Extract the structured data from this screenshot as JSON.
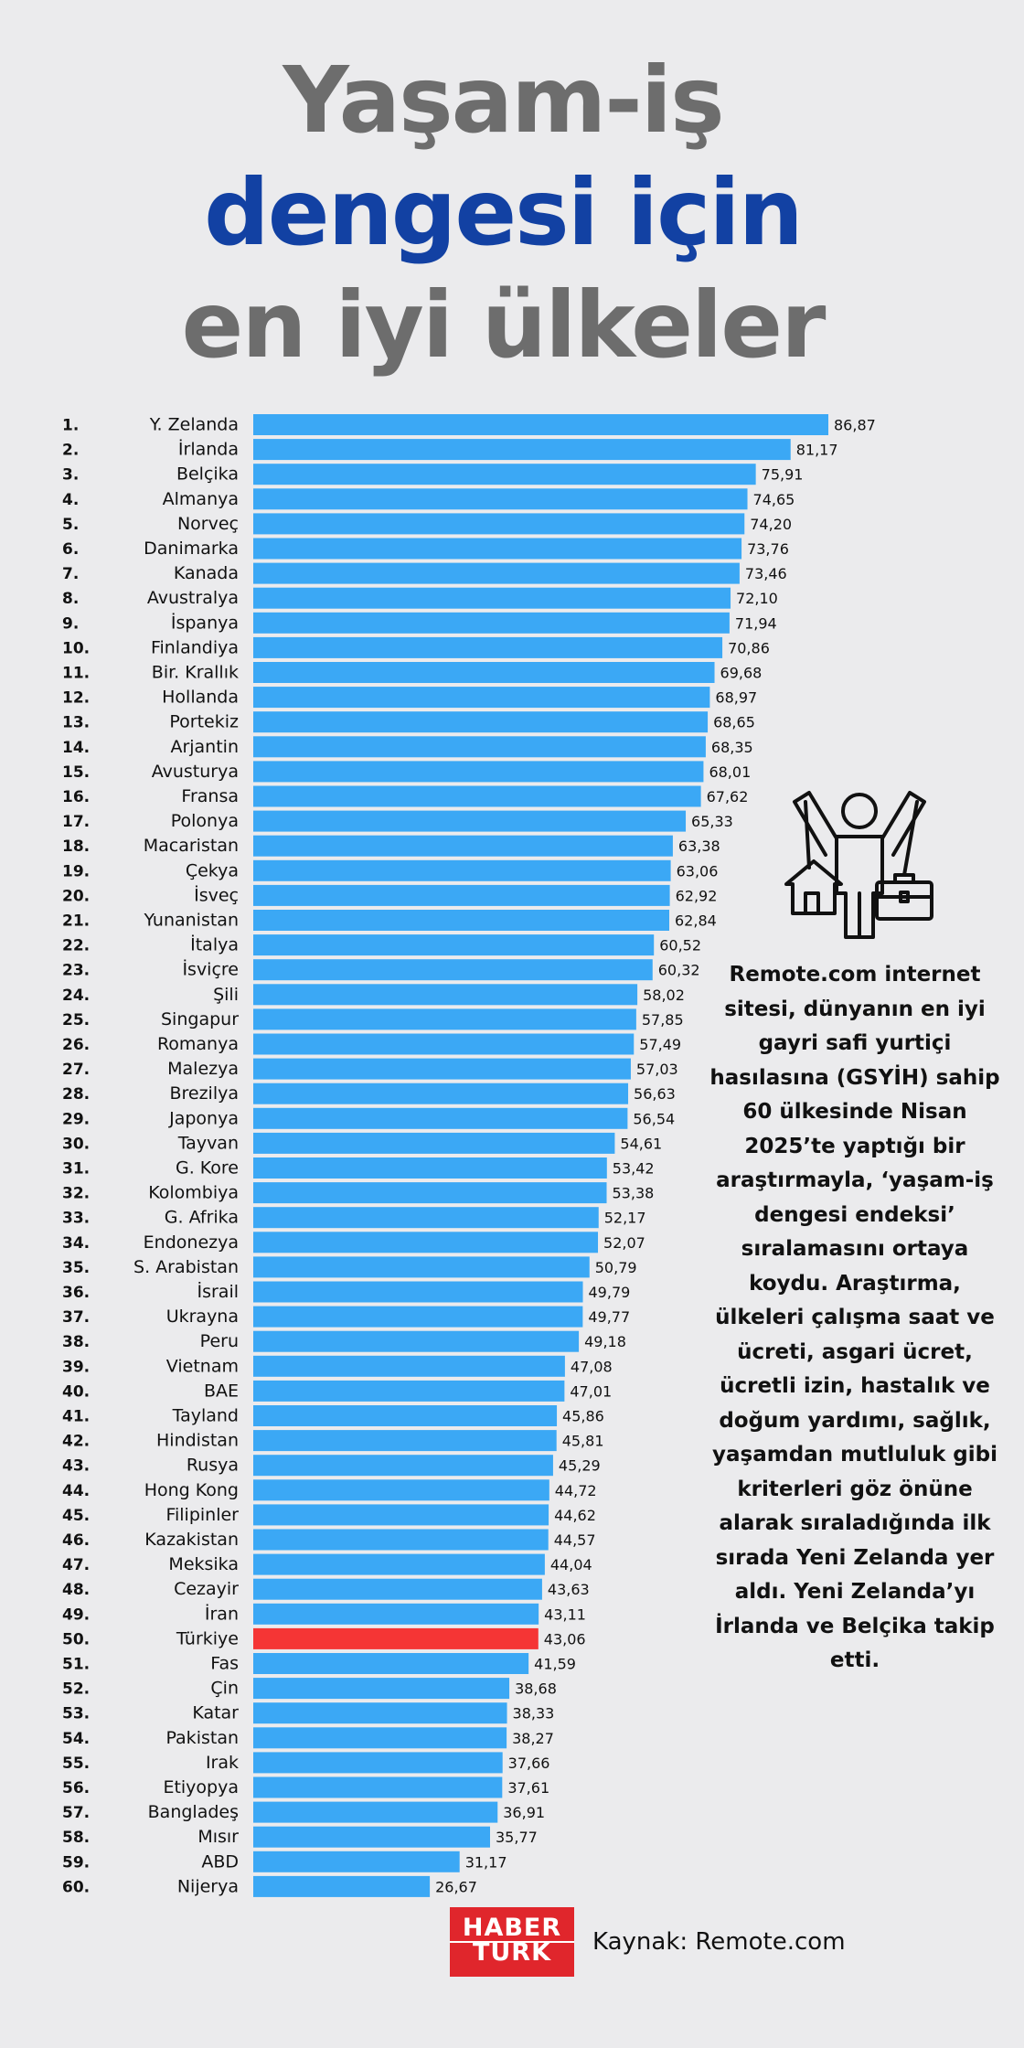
{
  "title": {
    "line1": "Yaşam-iş",
    "line2": "dengesi için",
    "line3": "en iyi ülkeler"
  },
  "chart_data": {
    "type": "bar",
    "orientation": "horizontal",
    "ranks": [
      "1.",
      "2.",
      "3.",
      "4.",
      "5.",
      "6.",
      "7.",
      "8.",
      "9.",
      "10.",
      "11.",
      "12.",
      "13.",
      "14.",
      "15.",
      "16.",
      "17.",
      "18.",
      "19.",
      "20.",
      "21.",
      "22.",
      "23.",
      "24.",
      "25.",
      "26.",
      "27.",
      "28.",
      "29.",
      "30.",
      "31.",
      "32.",
      "33.",
      "34.",
      "35.",
      "36.",
      "37.",
      "38.",
      "39.",
      "40.",
      "41.",
      "42.",
      "43.",
      "44.",
      "45.",
      "46.",
      "47.",
      "48.",
      "49.",
      "50.",
      "51.",
      "52.",
      "53.",
      "54.",
      "55.",
      "56.",
      "57.",
      "58.",
      "59.",
      "60."
    ],
    "categories": [
      "Y. Zelanda",
      "İrlanda",
      "Belçika",
      "Almanya",
      "Norveç",
      "Danimarka",
      "Kanada",
      "Avustralya",
      "İspanya",
      "Finlandiya",
      "Bir. Krallık",
      "Hollanda",
      "Portekiz",
      "Arjantin",
      "Avusturya",
      "Fransa",
      "Polonya",
      "Macaristan",
      "Çekya",
      "İsveç",
      "Yunanistan",
      "İtalya",
      "İsviçre",
      "Şili",
      "Singapur",
      "Romanya",
      "Malezya",
      "Brezilya",
      "Japonya",
      "Tayvan",
      "G. Kore",
      "Kolombiya",
      "G. Afrika",
      "Endonezya",
      "S. Arabistan",
      "İsrail",
      "Ukrayna",
      "Peru",
      "Vietnam",
      "BAE",
      "Tayland",
      "Hindistan",
      "Rusya",
      "Hong Kong",
      "Filipinler",
      "Kazakistan",
      "Meksika",
      "Cezayir",
      "İran",
      "Türkiye",
      "Fas",
      "Çin",
      "Katar",
      "Pakistan",
      "Irak",
      "Etiyopya",
      "Bangladeş",
      "Mısır",
      "ABD",
      "Nijerya"
    ],
    "values": [
      86.87,
      81.17,
      75.91,
      74.65,
      74.2,
      73.76,
      73.46,
      72.1,
      71.94,
      70.86,
      69.68,
      68.97,
      68.65,
      68.35,
      68.01,
      67.62,
      65.33,
      63.38,
      63.06,
      62.92,
      62.84,
      60.52,
      60.32,
      58.02,
      57.85,
      57.49,
      57.03,
      56.63,
      56.54,
      54.61,
      53.42,
      53.38,
      52.17,
      52.07,
      50.79,
      49.79,
      49.77,
      49.18,
      47.08,
      47.01,
      45.86,
      45.81,
      45.29,
      44.72,
      44.62,
      44.57,
      44.04,
      43.63,
      43.11,
      43.06,
      41.59,
      38.68,
      38.33,
      38.27,
      37.66,
      37.61,
      36.91,
      35.77,
      31.17,
      26.67
    ],
    "value_labels": [
      "86,87",
      "81,17",
      "75,91",
      "74,65",
      "74,20",
      "73,76",
      "73,46",
      "72,10",
      "71,94",
      "70,86",
      "69,68",
      "68,97",
      "68,65",
      "68,35",
      "68,01",
      "67,62",
      "65,33",
      "63,38",
      "63,06",
      "62,92",
      "62,84",
      "60,52",
      "60,32",
      "58,02",
      "57,85",
      "57,49",
      "57,03",
      "56,63",
      "56,54",
      "54,61",
      "53,42",
      "53,38",
      "52,17",
      "52,07",
      "50,79",
      "49,79",
      "49,77",
      "49,18",
      "47,08",
      "47,01",
      "45,86",
      "45,81",
      "45,29",
      "44,72",
      "44,62",
      "44,57",
      "44,04",
      "43,63",
      "43,11",
      "43,06",
      "41,59",
      "38,68",
      "38,33",
      "38,27",
      "37,66",
      "37,61",
      "36,91",
      "35,77",
      "31,17",
      "26,67"
    ],
    "highlight": "Türkiye",
    "bar_color": "#3ba8f5",
    "highlight_color": "#f53535"
  },
  "icon": "work-life-balance-person-house-briefcase-icon",
  "description": "Remote.com internet sitesi, dünyanın en iyi gayri safi yurtiçi hasılasına (GSYİH) sahip 60 ülkesinde Nisan 2025’te yaptığı bir araştırmayla, ‘yaşam-iş dengesi endeksi’ sıralamasını ortaya koydu. Araştırma, ülkeleri çalışma saat ve ücreti, asgari ücret, ücretli izin, hastalık ve doğum yardımı, sağlık, yaşamdan mutluluk gibi kriterleri göz önüne alarak sıraladığında ilk sırada Yeni Zelanda yer aldı. Yeni Zelanda’yı İrlanda ve Belçika takip etti.",
  "logo": {
    "line1": "HABER",
    "line2": "TURK"
  },
  "source": "Kaynak: Remote.com",
  "colors": {
    "title_gray": "#6d6d6d",
    "title_blue": "#1241a3",
    "background": "#ebebed",
    "logo_red": "#e0262c"
  }
}
